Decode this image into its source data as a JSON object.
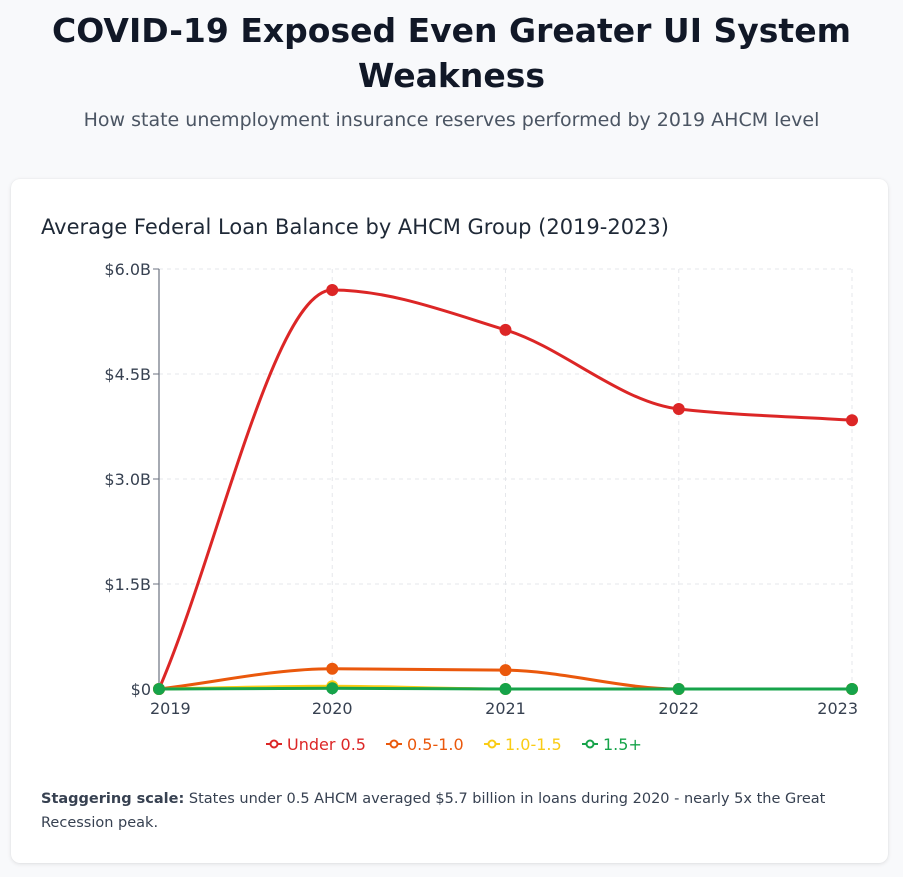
{
  "header": {
    "title": "COVID-19 Exposed Even Greater UI System Weakness",
    "subtitle": "How state unemployment insurance reserves performed by 2019 AHCM level"
  },
  "card": {
    "note_label": "Staggering scale:",
    "note_text": " States under 0.5 AHCM averaged $5.7 billion in loans during 2020 - nearly 5x the Great Recession peak."
  },
  "chart_data": {
    "type": "line",
    "title": "Average Federal Loan Balance by AHCM Group (2019-2023)",
    "xlabel": "",
    "ylabel": "",
    "categories": [
      "2019",
      "2020",
      "2021",
      "2022",
      "2023"
    ],
    "ylim": [
      0,
      6
    ],
    "y_ticks": [
      0,
      1.5,
      3.0,
      4.5,
      6.0
    ],
    "y_tick_labels": [
      "$0",
      "$1.5B",
      "$3.0B",
      "$4.5B",
      "$6.0B"
    ],
    "units": "billions USD",
    "grid": true,
    "legend_position": "bottom-center",
    "series": [
      {
        "name": "Under 0.5",
        "color": "#dc2626",
        "values": [
          0,
          5.7,
          5.13,
          4.0,
          3.84
        ]
      },
      {
        "name": "0.5-1.0",
        "color": "#ea580c",
        "values": [
          0,
          0.29,
          0.27,
          0,
          0
        ]
      },
      {
        "name": "1.0-1.5",
        "color": "#facc15",
        "values": [
          0,
          0.04,
          0,
          0,
          0
        ]
      },
      {
        "name": "1.5+",
        "color": "#16a34a",
        "values": [
          0,
          0.01,
          0,
          0,
          0
        ]
      }
    ]
  }
}
